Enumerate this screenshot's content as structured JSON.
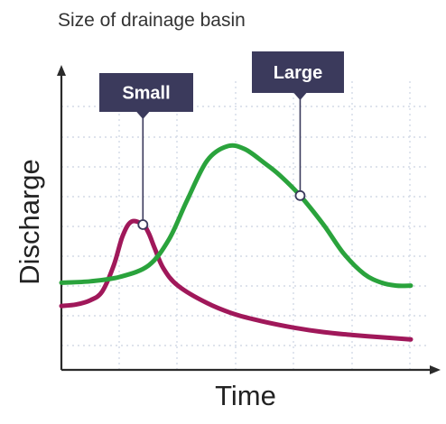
{
  "chart_data": {
    "type": "line",
    "title": "Size of drainage basin",
    "xlabel": "Time",
    "ylabel": "Discharge",
    "xlim": [
      0,
      12
    ],
    "ylim": [
      0,
      10
    ],
    "grid": true,
    "series": [
      {
        "name": "Small",
        "color": "#a0185a",
        "x": [
          0,
          0.5,
          1.0,
          1.4,
          1.8,
          2.1,
          2.4,
          2.8,
          3.0,
          3.2,
          3.5,
          4.0,
          5.0,
          6.0,
          7.0,
          8.0,
          9.0,
          10.0,
          11.0,
          12.0
        ],
        "y": [
          2.2,
          2.25,
          2.4,
          2.7,
          3.6,
          4.6,
          5.1,
          5.0,
          4.7,
          4.2,
          3.5,
          2.9,
          2.3,
          1.9,
          1.65,
          1.45,
          1.3,
          1.2,
          1.12,
          1.05
        ]
      },
      {
        "name": "Large",
        "color": "#2aa33c",
        "x": [
          0,
          1.0,
          2.0,
          3.0,
          3.7,
          4.3,
          5.0,
          5.7,
          6.3,
          7.0,
          7.5,
          8.2,
          9.0,
          9.7,
          10.4,
          11.0,
          11.5,
          12.0
        ],
        "y": [
          3.0,
          3.05,
          3.2,
          3.6,
          4.5,
          5.8,
          7.2,
          7.7,
          7.6,
          7.1,
          6.7,
          6.0,
          5.0,
          4.0,
          3.3,
          3.0,
          2.9,
          2.9
        ]
      }
    ],
    "annotations": [
      {
        "text": "Small",
        "series": "Small",
        "x": 2.8,
        "y": 5.0,
        "color": "#3b3a5c"
      },
      {
        "text": "Large",
        "series": "Large",
        "x": 8.2,
        "y": 6.0,
        "color": "#3b3a5c"
      }
    ]
  }
}
